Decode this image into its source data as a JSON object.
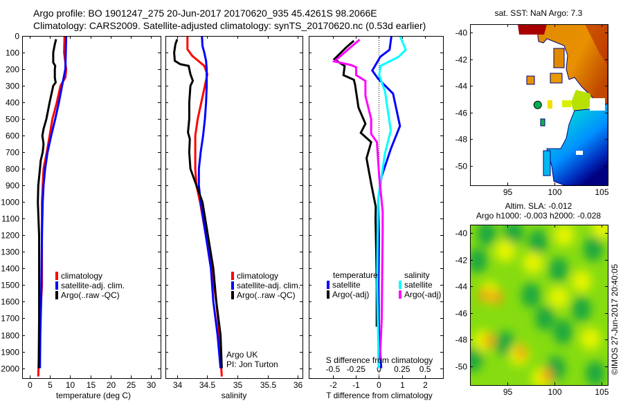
{
  "title_lines": [
    "Argo profile: BO 1901247_275 20-Jun-2017 20170620_935 45.4261S 98.2066E",
    "Climatology: CARS2009. Satellite-adjusted climatology: synTS_20170620.nc (0.53d earlier)"
  ],
  "annotation": {
    "line1": "Argo UK",
    "line2": "PI: Jon Turton"
  },
  "credit": "©IMOS 27-Jun-2017 20:40:05",
  "colors": {
    "climatology": "#ff0000",
    "satellite": "#0000ff",
    "argo": "#000000",
    "sat_salinity": "#00ffff",
    "argo_salinity": "#ff00ff"
  },
  "chart_data": [
    {
      "id": "temperature",
      "type": "line",
      "xlabel": "temperature (deg C)",
      "ylabel": "",
      "xlim": [
        -1.9,
        32.4
      ],
      "ylim": [
        0,
        2060
      ],
      "y_reversed": true,
      "xticks": [
        0,
        5,
        10,
        15,
        20,
        25,
        30
      ],
      "yticks": [
        0,
        100,
        200,
        300,
        400,
        500,
        600,
        700,
        800,
        900,
        1000,
        1100,
        1200,
        1300,
        1400,
        1500,
        1600,
        1700,
        1800,
        1900,
        2000
      ],
      "legend": [
        "climatology",
        "satellite-adj. clim.",
        "Argo(..raw -QC)"
      ],
      "series": [
        {
          "name": "climatology",
          "color": "#ff0000",
          "points": [
            [
              8.6,
              0
            ],
            [
              8.5,
              100
            ],
            [
              9.0,
              200
            ],
            [
              8.8,
              250
            ],
            [
              7.6,
              300
            ],
            [
              6.7,
              400
            ],
            [
              5.6,
              500
            ],
            [
              4.9,
              600
            ],
            [
              4.2,
              700
            ],
            [
              3.4,
              800
            ],
            [
              3.2,
              900
            ],
            [
              3.0,
              1000
            ],
            [
              3.0,
              1200
            ],
            [
              3.0,
              1500
            ],
            [
              2.6,
              1700
            ],
            [
              2.4,
              1800
            ],
            [
              2.1,
              2050
            ]
          ]
        },
        {
          "name": "satellite-adj. clim.",
          "color": "#0000ff",
          "points": [
            [
              9.0,
              0
            ],
            [
              8.9,
              100
            ],
            [
              8.8,
              200
            ],
            [
              8.0,
              300
            ],
            [
              7.2,
              400
            ],
            [
              6.3,
              500
            ],
            [
              5.3,
              600
            ],
            [
              4.4,
              700
            ],
            [
              3.8,
              800
            ],
            [
              3.4,
              900
            ],
            [
              3.2,
              1000
            ],
            [
              3.0,
              1200
            ],
            [
              2.9,
              1400
            ],
            [
              2.8,
              1600
            ],
            [
              2.6,
              1800
            ],
            [
              2.5,
              2000
            ]
          ]
        },
        {
          "name": "Argo(..raw -QC)",
          "color": "#000000",
          "points": [
            [
              6.5,
              20
            ],
            [
              6.2,
              50
            ],
            [
              5.8,
              100
            ],
            [
              5.8,
              160
            ],
            [
              6.3,
              180
            ],
            [
              6.2,
              200
            ],
            [
              6.2,
              250
            ],
            [
              6.4,
              280
            ],
            [
              5.8,
              300
            ],
            [
              4.9,
              400
            ],
            [
              4.1,
              500
            ],
            [
              3.4,
              560
            ],
            [
              3.1,
              600
            ],
            [
              3.4,
              650
            ],
            [
              3.2,
              700
            ],
            [
              2.7,
              750
            ],
            [
              2.5,
              800
            ],
            [
              2.3,
              850
            ],
            [
              2.1,
              900
            ],
            [
              2.0,
              1000
            ],
            [
              2.3,
              1200
            ],
            [
              2.3,
              1400
            ],
            [
              2.3,
              1700
            ],
            [
              2.2,
              2000
            ]
          ]
        }
      ]
    },
    {
      "id": "salinity",
      "type": "line",
      "xlabel": "salinity",
      "ylabel": "",
      "xlim": [
        33.805,
        36.08
      ],
      "ylim": [
        0,
        2060
      ],
      "y_reversed": true,
      "xticks": [
        34,
        34.5,
        35,
        35.5,
        36
      ],
      "yticks": [
        0,
        100,
        200,
        300,
        400,
        500,
        600,
        700,
        800,
        900,
        1000,
        1100,
        1200,
        1300,
        1400,
        1500,
        1600,
        1700,
        1800,
        1900,
        2000
      ],
      "legend": [
        "climatology",
        "satellite-adj. clim.",
        "Argo(..raw -QC)"
      ],
      "series": [
        {
          "name": "climatology",
          "color": "#ff0000",
          "points": [
            [
              34.17,
              0
            ],
            [
              34.17,
              80
            ],
            [
              34.25,
              120
            ],
            [
              34.35,
              150
            ],
            [
              34.45,
              180
            ],
            [
              34.5,
              230
            ],
            [
              34.46,
              300
            ],
            [
              34.4,
              400
            ],
            [
              34.34,
              500
            ],
            [
              34.3,
              600
            ],
            [
              34.3,
              800
            ],
            [
              34.32,
              900
            ],
            [
              34.38,
              1000
            ],
            [
              34.57,
              1400
            ],
            [
              34.65,
              1600
            ],
            [
              34.7,
              1800
            ],
            [
              34.74,
              2050
            ]
          ]
        },
        {
          "name": "satellite-adj. clim.",
          "color": "#0000ff",
          "points": [
            [
              34.41,
              0
            ],
            [
              34.42,
              60
            ],
            [
              34.45,
              100
            ],
            [
              34.48,
              150
            ],
            [
              34.49,
              200
            ],
            [
              34.49,
              300
            ],
            [
              34.48,
              400
            ],
            [
              34.46,
              500
            ],
            [
              34.43,
              600
            ],
            [
              34.39,
              700
            ],
            [
              34.36,
              800
            ],
            [
              34.36,
              900
            ],
            [
              34.39,
              1000
            ],
            [
              34.56,
              1400
            ],
            [
              34.6,
              1600
            ],
            [
              34.67,
              1800
            ],
            [
              34.72,
              2000
            ]
          ]
        },
        {
          "name": "Argo(..raw -QC)",
          "color": "#000000",
          "points": [
            [
              34.0,
              20
            ],
            [
              33.97,
              50
            ],
            [
              33.95,
              100
            ],
            [
              33.96,
              150
            ],
            [
              34.05,
              170
            ],
            [
              34.19,
              180
            ],
            [
              34.22,
              230
            ],
            [
              34.26,
              270
            ],
            [
              34.22,
              300
            ],
            [
              34.2,
              400
            ],
            [
              34.2,
              500
            ],
            [
              34.18,
              580
            ],
            [
              34.21,
              620
            ],
            [
              34.2,
              700
            ],
            [
              34.22,
              800
            ],
            [
              34.32,
              900
            ],
            [
              34.42,
              1000
            ],
            [
              34.6,
              1400
            ],
            [
              34.65,
              1600
            ],
            [
              34.72,
              1800
            ],
            [
              34.74,
              2000
            ]
          ]
        }
      ]
    },
    {
      "id": "difference",
      "type": "line",
      "xlabel": "T difference from climatology",
      "s_label": "S difference from climatology",
      "xlim": [
        -3.05,
        2.78
      ],
      "s_xlim": [
        -0.7625,
        0.695
      ],
      "ylim": [
        0,
        2060
      ],
      "y_reversed": true,
      "xticks": [
        -2,
        -1,
        0,
        1,
        2
      ],
      "s_ticks": [
        -0.5,
        -0.25,
        0,
        0.25,
        0.5
      ],
      "yticks": [
        0,
        100,
        200,
        300,
        400,
        500,
        600,
        700,
        800,
        900,
        1000,
        1100,
        1200,
        1300,
        1400,
        1500,
        1600,
        1700,
        1800,
        1900,
        2000
      ],
      "legend_headers": [
        "temperature",
        "salinity"
      ],
      "legend": [
        "satellite",
        "Argo(-adj)",
        "satellite",
        "Argo(-adj)"
      ],
      "series": [
        {
          "name": "temperature satellite",
          "axis": "T",
          "color": "#0000ff",
          "points": [
            [
              0.54,
              0
            ],
            [
              0.46,
              83
            ],
            [
              0.06,
              125
            ],
            [
              -0.29,
              208
            ],
            [
              -0.04,
              257
            ],
            [
              0.61,
              347
            ],
            [
              0.91,
              542
            ],
            [
              0.51,
              681
            ],
            [
              0.11,
              847
            ],
            [
              -0.04,
              986
            ],
            [
              0.0,
              1200
            ],
            [
              -0.02,
              1500
            ],
            [
              0.0,
              1800
            ],
            [
              0.1,
              2000
            ]
          ]
        },
        {
          "name": "temperature Argo(-adj)",
          "axis": "T",
          "color": "#000000",
          "points": [
            [
              -1.09,
              29
            ],
            [
              -1.44,
              71
            ],
            [
              -1.94,
              140
            ],
            [
              -1.49,
              181
            ],
            [
              -1.54,
              236
            ],
            [
              -1.09,
              264
            ],
            [
              -1.04,
              292
            ],
            [
              -0.89,
              431
            ],
            [
              -0.59,
              528
            ],
            [
              -0.79,
              583
            ],
            [
              -0.34,
              639
            ],
            [
              -0.54,
              736
            ],
            [
              -0.34,
              889
            ],
            [
              -0.14,
              1028
            ],
            [
              -0.15,
              1100
            ],
            [
              -0.12,
              1300
            ],
            [
              -0.1,
              1500
            ],
            [
              -0.1,
              1750
            ]
          ]
        },
        {
          "name": "salinity satellite",
          "axis": "S",
          "color": "#00ffff",
          "points": [
            [
              0.2275,
              0
            ],
            [
              0.29,
              83
            ],
            [
              0.215,
              125
            ],
            [
              0.015,
              181
            ],
            [
              0.0025,
              236
            ],
            [
              0.065,
              333
            ],
            [
              0.1275,
              569
            ],
            [
              0.065,
              708
            ],
            [
              0.015,
              889
            ],
            [
              -0.01,
              986
            ],
            [
              -0.015,
              1181
            ],
            [
              -0.02,
              1500
            ],
            [
              -0.01,
              1800
            ],
            [
              -0.005,
              2000
            ]
          ]
        },
        {
          "name": "salinity Argo(-adj)",
          "axis": "S",
          "color": "#ff00ff",
          "points": [
            [
              -0.21,
              22
            ],
            [
              -0.3975,
              111
            ],
            [
              -0.485,
              153
            ],
            [
              -0.31,
              174
            ],
            [
              -0.2475,
              188
            ],
            [
              -0.2475,
              236
            ],
            [
              -0.1475,
              271
            ],
            [
              -0.1475,
              361
            ],
            [
              -0.085,
              500
            ],
            [
              -0.085,
              590
            ],
            [
              -0.0225,
              639
            ],
            [
              0.0025,
              847
            ],
            [
              0.04,
              1056
            ],
            [
              0.04,
              1181
            ],
            [
              0.035,
              1400
            ],
            [
              0.03,
              1700
            ],
            [
              0.01,
              1950
            ]
          ]
        }
      ]
    },
    {
      "id": "sst_map",
      "type": "heatmap",
      "title": "sat. SST: NaN Argo: 7.3",
      "xlim": [
        91.02,
        105.65
      ],
      "ylim": [
        -51.45,
        -39.38
      ],
      "xticks": [
        95,
        100,
        105
      ],
      "yticks": [
        -40,
        -42,
        -44,
        -46,
        -48,
        -50
      ],
      "argo_position": {
        "lon": 98.2066,
        "lat": -45.4261,
        "color": "#00b050"
      }
    },
    {
      "id": "sla_map",
      "type": "heatmap",
      "title_lines": [
        "Altim. SLA: -0.012",
        "Argo h1000: -0.003 h2000: -0.028"
      ],
      "xlim": [
        91.02,
        105.65
      ],
      "ylim": [
        -51.4,
        -39.38
      ],
      "xticks": [
        95,
        100,
        105
      ],
      "yticks": [
        -40,
        -42,
        -44,
        -46,
        -48,
        -50
      ]
    }
  ]
}
